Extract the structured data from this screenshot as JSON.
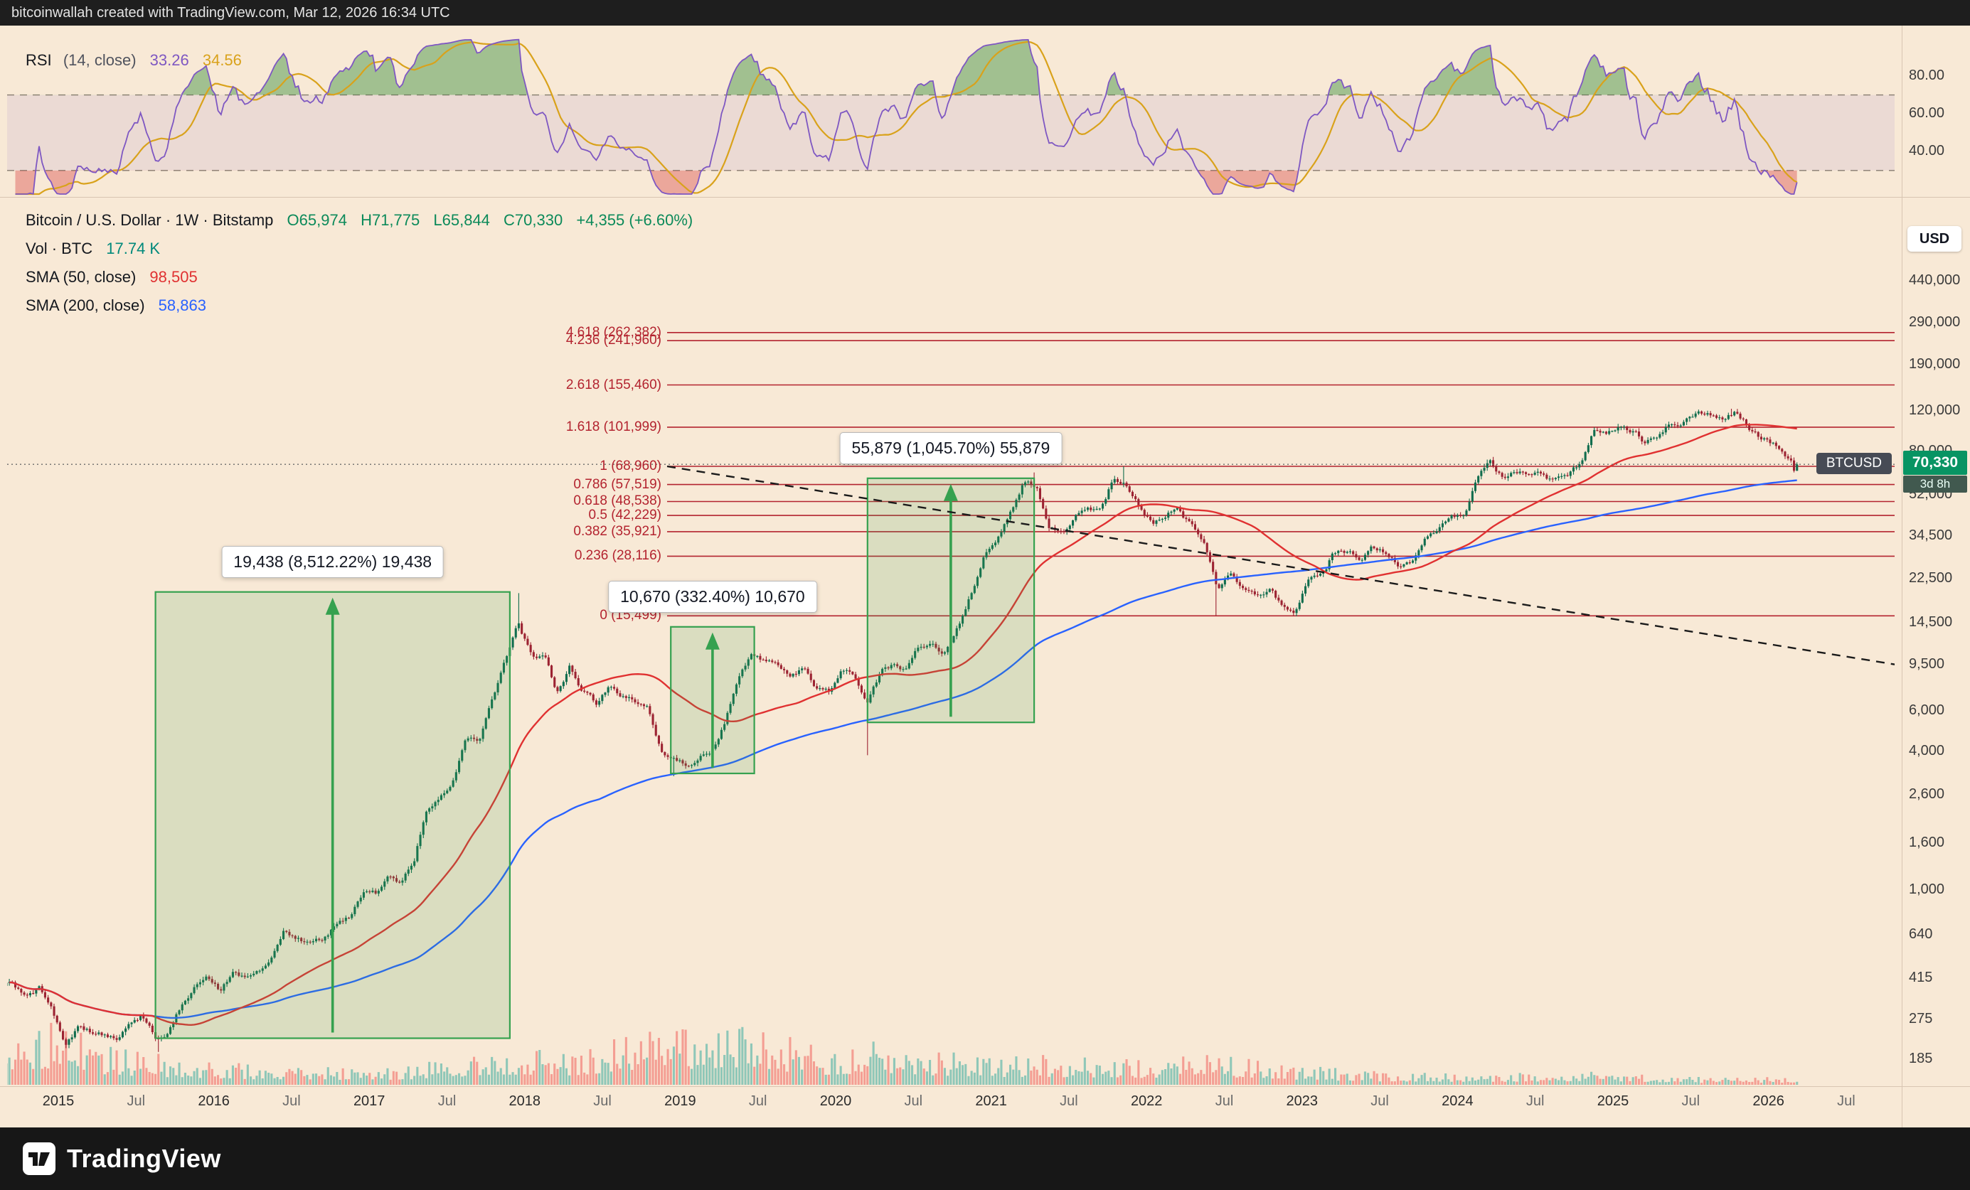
{
  "topbar": {
    "text": "bitcoinwallah created with TradingView.com, Mar 12, 2026 16:34 UTC"
  },
  "footer": {
    "brand": "TradingView"
  },
  "rsi_pane": {
    "indicator": "RSI",
    "params": "(14, close)",
    "value": "33.26",
    "ma_value": "34.56",
    "axis_ticks": [
      {
        "label": "80.00",
        "value": 80
      },
      {
        "label": "60.00",
        "value": 60
      },
      {
        "label": "40.00",
        "value": 40
      }
    ],
    "bands": {
      "upper": 70,
      "lower": 30
    }
  },
  "main_pane": {
    "title": "Bitcoin / U.S. Dollar · 1W · Bitstamp",
    "ohlc": {
      "open": "O65,974",
      "high": "H71,775",
      "low": "L65,844",
      "close": "C70,330",
      "change": "+4,355 (+6.60%)"
    },
    "volume": {
      "label": "Vol · BTC",
      "value": "17.74 K"
    },
    "sma50": {
      "label": "SMA (50, close)",
      "value": "98,505"
    },
    "sma200": {
      "label": "SMA (200, close)",
      "value": "58,863"
    },
    "currency_button": "USD",
    "symbol_badge": "BTCUSD",
    "price_badge": {
      "price": "70,330",
      "countdown": "3d 8h"
    }
  },
  "price_axis": {
    "ticks": [
      {
        "label": "440,000",
        "value": 440000
      },
      {
        "label": "290,000",
        "value": 290000
      },
      {
        "label": "190,000",
        "value": 190000
      },
      {
        "label": "120,000",
        "value": 120000
      },
      {
        "label": "80,000",
        "value": 80000
      },
      {
        "label": "52,000",
        "value": 52000
      },
      {
        "label": "34,500",
        "value": 34500
      },
      {
        "label": "22,500",
        "value": 22500
      },
      {
        "label": "14,500",
        "value": 14500
      },
      {
        "label": "9,500",
        "value": 9500
      },
      {
        "label": "6,000",
        "value": 6000
      },
      {
        "label": "4,000",
        "value": 4000
      },
      {
        "label": "2,600",
        "value": 2600
      },
      {
        "label": "1,600",
        "value": 1600
      },
      {
        "label": "1,000",
        "value": 1000
      },
      {
        "label": "640",
        "value": 640
      },
      {
        "label": "415",
        "value": 415
      },
      {
        "label": "275",
        "value": 275
      },
      {
        "label": "185",
        "value": 185
      }
    ]
  },
  "time_axis": {
    "ticks": [
      {
        "label": "2015",
        "yf": 2015
      },
      {
        "label": "Jul",
        "yf": 2015.5
      },
      {
        "label": "2016",
        "yf": 2016
      },
      {
        "label": "Jul",
        "yf": 2016.5
      },
      {
        "label": "2017",
        "yf": 2017
      },
      {
        "label": "Jul",
        "yf": 2017.5
      },
      {
        "label": "2018",
        "yf": 2018
      },
      {
        "label": "Jul",
        "yf": 2018.5
      },
      {
        "label": "2019",
        "yf": 2019
      },
      {
        "label": "Jul",
        "yf": 2019.5
      },
      {
        "label": "2020",
        "yf": 2020
      },
      {
        "label": "Jul",
        "yf": 2020.5
      },
      {
        "label": "2021",
        "yf": 2021
      },
      {
        "label": "Jul",
        "yf": 2021.5
      },
      {
        "label": "2022",
        "yf": 2022
      },
      {
        "label": "Jul",
        "yf": 2022.5
      },
      {
        "label": "2023",
        "yf": 2023
      },
      {
        "label": "Jul",
        "yf": 2023.5
      },
      {
        "label": "2024",
        "yf": 2024
      },
      {
        "label": "Jul",
        "yf": 2024.5
      },
      {
        "label": "2025",
        "yf": 2025
      },
      {
        "label": "Jul",
        "yf": 2025.5
      },
      {
        "label": "2026",
        "yf": 2026
      },
      {
        "label": "Jul",
        "yf": 2026.5
      }
    ]
  },
  "chart_data": {
    "type": "candlestick",
    "symbol": "Bitcoin / U.S. Dollar",
    "exchange": "Bitstamp",
    "timeframe": "1W",
    "scale": "log",
    "x_range": [
      "2014-09",
      "2026-07"
    ],
    "last_candle": {
      "open": 65974,
      "high": 71775,
      "low": 65844,
      "close": 70330,
      "change": 4355,
      "change_pct": 6.6
    },
    "indicators": {
      "rsi_value": 33.26,
      "rsi_ma": 34.56,
      "sma50": 98505,
      "sma200": 58863,
      "volume_btc": "17.74 K"
    },
    "monthly_closes": [
      [
        "2014-09",
        388
      ],
      [
        "2014-10",
        338
      ],
      [
        "2014-11",
        375
      ],
      [
        "2014-12",
        320
      ],
      [
        "2015-01",
        217
      ],
      [
        "2015-02",
        254
      ],
      [
        "2015-03",
        244
      ],
      [
        "2015-04",
        236
      ],
      [
        "2015-05",
        230
      ],
      [
        "2015-06",
        263
      ],
      [
        "2015-07",
        284
      ],
      [
        "2015-08",
        230
      ],
      [
        "2015-09",
        236
      ],
      [
        "2015-10",
        314
      ],
      [
        "2015-11",
        377
      ],
      [
        "2015-12",
        430
      ],
      [
        "2016-01",
        368
      ],
      [
        "2016-02",
        437
      ],
      [
        "2016-03",
        416
      ],
      [
        "2016-04",
        448
      ],
      [
        "2016-05",
        531
      ],
      [
        "2016-06",
        673
      ],
      [
        "2016-07",
        624
      ],
      [
        "2016-08",
        575
      ],
      [
        "2016-09",
        610
      ],
      [
        "2016-10",
        700
      ],
      [
        "2016-11",
        745
      ],
      [
        "2016-12",
        963
      ],
      [
        "2017-01",
        970
      ],
      [
        "2017-02",
        1190
      ],
      [
        "2017-03",
        1080
      ],
      [
        "2017-04",
        1350
      ],
      [
        "2017-05",
        2300
      ],
      [
        "2017-06",
        2480
      ],
      [
        "2017-07",
        2875
      ],
      [
        "2017-08",
        4700
      ],
      [
        "2017-09",
        4360
      ],
      [
        "2017-10",
        6470
      ],
      [
        "2017-11",
        9950
      ],
      [
        "2017-12",
        14160
      ],
      [
        "2018-01",
        10220
      ],
      [
        "2018-02",
        10360
      ],
      [
        "2018-03",
        6940
      ],
      [
        "2018-04",
        9240
      ],
      [
        "2018-05",
        7500
      ],
      [
        "2018-06",
        6400
      ],
      [
        "2018-07",
        7750
      ],
      [
        "2018-08",
        7030
      ],
      [
        "2018-09",
        6600
      ],
      [
        "2018-10",
        6340
      ],
      [
        "2018-11",
        4040
      ],
      [
        "2018-12",
        3740
      ],
      [
        "2019-01",
        3460
      ],
      [
        "2019-02",
        3820
      ],
      [
        "2019-03",
        4100
      ],
      [
        "2019-04",
        5320
      ],
      [
        "2019-05",
        8560
      ],
      [
        "2019-06",
        10800
      ],
      [
        "2019-07",
        10080
      ],
      [
        "2019-08",
        9630
      ],
      [
        "2019-09",
        8310
      ],
      [
        "2019-10",
        9150
      ],
      [
        "2019-11",
        7570
      ],
      [
        "2019-12",
        7190
      ],
      [
        "2020-01",
        9350
      ],
      [
        "2020-02",
        8600
      ],
      [
        "2020-03",
        6440
      ],
      [
        "2020-04",
        8630
      ],
      [
        "2020-05",
        9450
      ],
      [
        "2020-06",
        9140
      ],
      [
        "2020-07",
        11350
      ],
      [
        "2020-08",
        11650
      ],
      [
        "2020-09",
        10780
      ],
      [
        "2020-10",
        13800
      ],
      [
        "2020-11",
        19700
      ],
      [
        "2020-12",
        29000
      ],
      [
        "2021-01",
        33100
      ],
      [
        "2021-02",
        45200
      ],
      [
        "2021-03",
        58800
      ],
      [
        "2021-04",
        57800
      ],
      [
        "2021-05",
        37300
      ],
      [
        "2021-06",
        35000
      ],
      [
        "2021-07",
        41500
      ],
      [
        "2021-08",
        47100
      ],
      [
        "2021-09",
        43800
      ],
      [
        "2021-10",
        61300
      ],
      [
        "2021-11",
        57000
      ],
      [
        "2021-12",
        46200
      ],
      [
        "2022-01",
        38500
      ],
      [
        "2022-02",
        43200
      ],
      [
        "2022-03",
        45500
      ],
      [
        "2022-04",
        37600
      ],
      [
        "2022-05",
        31800
      ],
      [
        "2022-06",
        19900
      ],
      [
        "2022-07",
        23300
      ],
      [
        "2022-08",
        20050
      ],
      [
        "2022-09",
        19400
      ],
      [
        "2022-10",
        20500
      ],
      [
        "2022-11",
        17100
      ],
      [
        "2022-12",
        16550
      ],
      [
        "2023-01",
        23100
      ],
      [
        "2023-02",
        23150
      ],
      [
        "2023-03",
        28500
      ],
      [
        "2023-04",
        29250
      ],
      [
        "2023-05",
        27200
      ],
      [
        "2023-06",
        30480
      ],
      [
        "2023-07",
        29230
      ],
      [
        "2023-08",
        25940
      ],
      [
        "2023-09",
        26970
      ],
      [
        "2023-10",
        34650
      ],
      [
        "2023-11",
        37720
      ],
      [
        "2023-12",
        42250
      ],
      [
        "2024-01",
        42580
      ],
      [
        "2024-02",
        61200
      ],
      [
        "2024-03",
        71300
      ],
      [
        "2024-04",
        60640
      ],
      [
        "2024-05",
        67500
      ],
      [
        "2024-06",
        62680
      ],
      [
        "2024-07",
        64620
      ],
      [
        "2024-08",
        58970
      ],
      [
        "2024-09",
        63330
      ],
      [
        "2024-10",
        70220
      ],
      [
        "2024-11",
        96450
      ],
      [
        "2024-12",
        93430
      ],
      [
        "2025-01",
        102000
      ],
      [
        "2025-02",
        97000
      ],
      [
        "2025-03",
        88000
      ],
      [
        "2025-04",
        95000
      ],
      [
        "2025-05",
        106000
      ],
      [
        "2025-06",
        108000
      ],
      [
        "2025-07",
        116000
      ],
      [
        "2025-08",
        118000
      ],
      [
        "2025-09",
        112000
      ],
      [
        "2025-10",
        119000
      ],
      [
        "2025-11",
        103000
      ],
      [
        "2025-12",
        92000
      ],
      [
        "2026-01",
        86000
      ],
      [
        "2026-02",
        76000
      ],
      [
        "2026-03",
        70330
      ]
    ],
    "key_extremes": [
      [
        "2015-08-24",
        "low",
        199
      ],
      [
        "2017-12-18",
        "high",
        19438
      ],
      [
        "2018-12-17",
        "low",
        3122
      ],
      [
        "2019-06-24",
        "high",
        13880
      ],
      [
        "2020-03-16",
        "low",
        3850
      ],
      [
        "2021-04-12",
        "high",
        64899
      ],
      [
        "2021-11-08",
        "high",
        69000
      ],
      [
        "2022-06-13",
        "low",
        15499
      ],
      [
        "2024-03-11",
        "high",
        73794
      ],
      [
        "2025-10-06",
        "high",
        122600
      ]
    ],
    "fib_levels": [
      {
        "label": "4.618 (262,382)",
        "value": 262382
      },
      {
        "label": "4.236 (241,960)",
        "value": 241960
      },
      {
        "label": "2.618 (155,460)",
        "value": 155460
      },
      {
        "label": "1.618 (101,999)",
        "value": 101999
      },
      {
        "label": "1 (68,960)",
        "value": 68960
      },
      {
        "label": "0.786 (57,519)",
        "value": 57519
      },
      {
        "label": "0.618 (48,538)",
        "value": 48538
      },
      {
        "label": "0.5 (42,229)",
        "value": 42229
      },
      {
        "label": "0.382 (35,921)",
        "value": 35921
      },
      {
        "label": "0.236 (28,116)",
        "value": 28116
      },
      {
        "label": "0 (15,499)",
        "value": 15499
      }
    ],
    "range_boxes": [
      {
        "from": "2015-08-17",
        "to": "2017-11-27",
        "base": 228,
        "top": 19666,
        "label": "19,438 (8,512.22%) 19,438"
      },
      {
        "from": "2018-12-10",
        "to": "2019-06-24",
        "base": 3210,
        "top": 13880,
        "label": "10,670 (332.40%) 10,670"
      },
      {
        "from": "2020-03-16",
        "to": "2021-04-12",
        "base": 5344,
        "top": 61223,
        "label": "55,879 (1,045.70%) 55,879"
      }
    ],
    "trendline": {
      "style": "dashed",
      "from_yf": 2018.916,
      "from_price": 68960,
      "to_yf": 2026.907,
      "to_price": 9311
    },
    "volume_profile": [
      [
        2014.67,
        0.8
      ],
      [
        2015.0,
        1.0
      ],
      [
        2015.35,
        0.55
      ],
      [
        2015.9,
        0.4
      ],
      [
        2016.5,
        0.26
      ],
      [
        2017.2,
        0.3
      ],
      [
        2017.95,
        0.5
      ],
      [
        2018.3,
        0.55
      ],
      [
        2018.95,
        0.95
      ],
      [
        2019.5,
        0.9
      ],
      [
        2019.9,
        0.55
      ],
      [
        2020.25,
        0.7
      ],
      [
        2020.9,
        0.45
      ],
      [
        2021.4,
        0.45
      ],
      [
        2021.9,
        0.4
      ],
      [
        2022.5,
        0.45
      ],
      [
        2022.95,
        0.3
      ],
      [
        2023.5,
        0.2
      ],
      [
        2024.2,
        0.17
      ],
      [
        2024.95,
        0.2
      ],
      [
        2025.6,
        0.11
      ],
      [
        2026.2,
        0.13
      ]
    ],
    "colors": {
      "up": "#116d4e",
      "down": "#9c2332",
      "vol_up": "rgba(38,166,154,0.5)",
      "vol_down": "rgba(239,83,80,0.5)",
      "sma50": "#e03131",
      "sma200": "#2962ff",
      "fib": "#b3232f",
      "drawing": "#35a14f",
      "rsi": "#7e57c2",
      "rsi_ma": "#d9a21b",
      "price_badge": "#089463",
      "background": "#f8e9d6"
    }
  }
}
